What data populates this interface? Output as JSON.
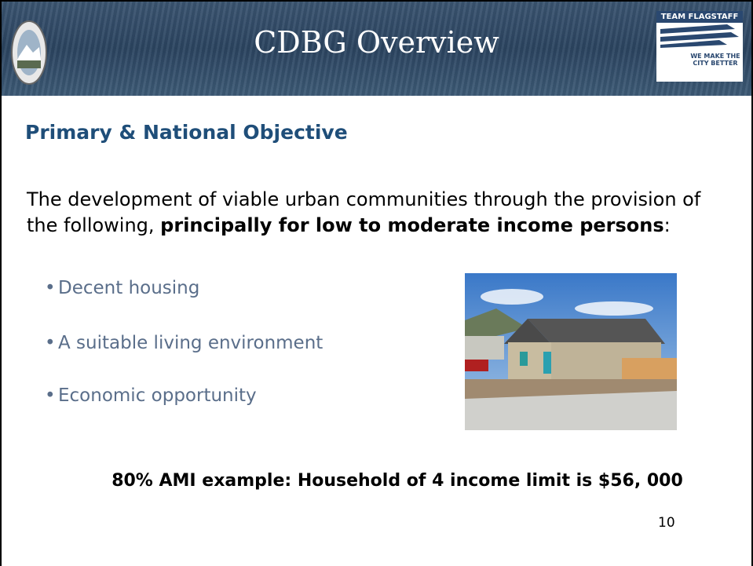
{
  "header": {
    "title": "CDBG Overview",
    "logo_text": [
      "TEAM FLAGSTAFF",
      "WE MAKE THE",
      "CITY BETTER"
    ]
  },
  "heading": "Primary & National Objective",
  "paragraph": {
    "parts": [
      "The development of viable urban communities through the provision of the following, ",
      "principally for low to moderate income persons",
      ":"
    ]
  },
  "bullets": [
    "Decent housing",
    "A suitable living environment",
    "Economic opportunity"
  ],
  "statement": "80% AMI example: Household of 4 income limit is $56, 000",
  "page_number": "10"
}
